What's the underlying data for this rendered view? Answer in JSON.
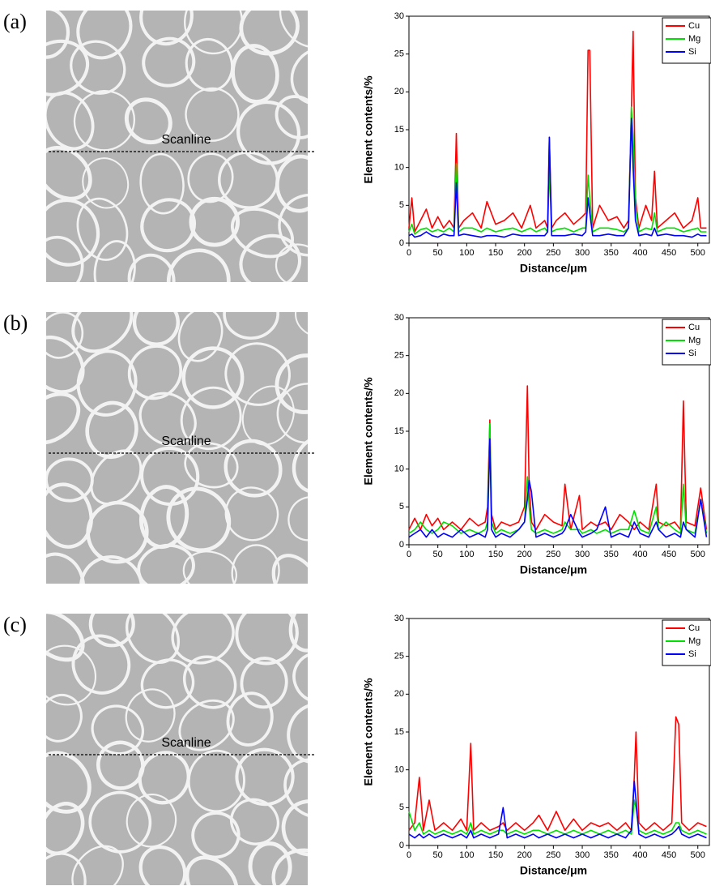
{
  "chart_data": [
    {
      "type": "line",
      "panel_label": "(a)",
      "image_annotation": "Scanline",
      "x_label": "Distance/μm",
      "y_label": "Element contents/%",
      "x": [
        0,
        5,
        10,
        20,
        30,
        40,
        50,
        60,
        70,
        78,
        82,
        86,
        95,
        110,
        125,
        135,
        150,
        165,
        180,
        195,
        210,
        220,
        235,
        240,
        243,
        247,
        255,
        270,
        285,
        300,
        306,
        310,
        313,
        318,
        330,
        345,
        360,
        372,
        380,
        385,
        388,
        392,
        398,
        410,
        420,
        425,
        430,
        445,
        460,
        475,
        490,
        500,
        505,
        515
      ],
      "series": [
        {
          "name": "Cu",
          "color": "#ff0000",
          "values": [
            2,
            6,
            1.5,
            3,
            4.5,
            2,
            3.5,
            2,
            3,
            2,
            14.5,
            2,
            3,
            4,
            2,
            5.5,
            2.5,
            3,
            4,
            2,
            5,
            2,
            3,
            2,
            14,
            2,
            3,
            4,
            2.5,
            3.5,
            4,
            25.5,
            25.5,
            2,
            5,
            3,
            3.5,
            2,
            3,
            17.5,
            28,
            6,
            2,
            5,
            3,
            9.5,
            2,
            3,
            4,
            2,
            3,
            6,
            2,
            2
          ]
        },
        {
          "name": "Mg",
          "color": "#00e000",
          "values": [
            1.5,
            2.5,
            1.2,
            1.8,
            2,
            1.5,
            1.8,
            1.5,
            2,
            1.5,
            10.5,
            1.5,
            2,
            2,
            1.5,
            2,
            1.5,
            1.8,
            2,
            1.5,
            2,
            1.5,
            2,
            1.5,
            10,
            1.5,
            1.8,
            2,
            1.5,
            2,
            2,
            9,
            6,
            1.5,
            2,
            2,
            1.8,
            1.5,
            2,
            18,
            14,
            5,
            1.5,
            2,
            1.8,
            4,
            1.5,
            2,
            2,
            1.5,
            1.8,
            2,
            1.5,
            1.5
          ]
        },
        {
          "name": "Si",
          "color": "#0000ff",
          "values": [
            1,
            1.2,
            0.8,
            1,
            1.5,
            1,
            0.8,
            1.2,
            1,
            1,
            8,
            1,
            1.2,
            1,
            0.8,
            1,
            1,
            0.8,
            1.2,
            1,
            1,
            1,
            1,
            1.5,
            14,
            1,
            1,
            1,
            1.2,
            1,
            1.5,
            6,
            4,
            1,
            1,
            1.2,
            1,
            1,
            2,
            16.5,
            10,
            3,
            1,
            1.2,
            1,
            2,
            1,
            1.2,
            1,
            1,
            0.8,
            1.2,
            1,
            1
          ]
        }
      ],
      "xlim": [
        0,
        520
      ],
      "ylim": [
        0,
        30
      ],
      "xticks": [
        0,
        50,
        100,
        150,
        200,
        250,
        300,
        350,
        400,
        450,
        500
      ],
      "yticks": [
        0,
        5,
        10,
        15,
        20,
        25,
        30
      ],
      "legend": "upper right"
    },
    {
      "type": "line",
      "panel_label": "(b)",
      "image_annotation": "Scanline",
      "x_label": "Distance/μm",
      "y_label": "Element contents/%",
      "x": [
        0,
        10,
        20,
        30,
        40,
        50,
        60,
        75,
        90,
        105,
        120,
        132,
        136,
        140,
        143,
        150,
        160,
        175,
        190,
        200,
        205,
        208,
        212,
        220,
        235,
        250,
        265,
        270,
        280,
        295,
        300,
        315,
        325,
        340,
        350,
        365,
        380,
        390,
        400,
        415,
        428,
        432,
        445,
        460,
        470,
        475,
        480,
        495,
        505,
        515
      ],
      "series": [
        {
          "name": "Cu",
          "color": "#ff0000",
          "values": [
            2,
            3.5,
            2,
            4,
            2.5,
            3.5,
            2,
            3,
            2,
            3.5,
            2.5,
            3,
            5,
            16.5,
            4,
            2,
            3,
            2.5,
            3,
            5,
            21,
            8,
            3,
            2,
            4,
            3,
            2.5,
            8,
            2,
            6.5,
            2,
            3,
            2.5,
            3,
            2,
            4,
            3,
            2,
            3,
            2,
            8,
            3,
            2.5,
            3,
            2,
            19,
            3,
            2.5,
            7.5,
            2
          ]
        },
        {
          "name": "Mg",
          "color": "#00e000",
          "values": [
            1.5,
            2,
            3,
            2,
            1.5,
            2,
            3,
            2.5,
            1.5,
            2,
            1.5,
            2,
            3,
            16,
            3,
            1.5,
            2,
            1.5,
            2,
            3,
            9,
            5,
            2,
            1.5,
            2,
            1.5,
            2,
            3,
            2,
            2,
            1.5,
            2,
            1.5,
            2,
            1.5,
            2,
            2,
            4.5,
            2,
            1.5,
            5,
            2,
            3,
            2,
            1.5,
            8,
            2,
            1.5,
            6,
            1.5
          ]
        },
        {
          "name": "Si",
          "color": "#0000ff",
          "values": [
            1,
            1.5,
            2,
            1,
            2,
            1,
            1.5,
            1,
            2,
            1,
            1.5,
            1,
            2,
            14,
            2,
            1,
            1.5,
            1,
            2,
            3,
            6,
            8.5,
            7,
            1,
            1.5,
            1,
            1.5,
            2,
            4,
            1.5,
            1,
            1.5,
            2,
            5,
            1,
            1.5,
            1,
            3,
            1.5,
            1,
            3,
            2,
            1,
            1.5,
            1,
            3,
            2,
            1,
            6,
            1
          ]
        }
      ],
      "xlim": [
        0,
        520
      ],
      "ylim": [
        0,
        30
      ],
      "xticks": [
        0,
        50,
        100,
        150,
        200,
        250,
        300,
        350,
        400,
        450,
        500
      ],
      "yticks": [
        0,
        5,
        10,
        15,
        20,
        25,
        30
      ],
      "legend": "upper right"
    },
    {
      "type": "line",
      "panel_label": "(c)",
      "image_annotation": "Scanline",
      "x_label": "Distance/μm",
      "y_label": "Element contents/%",
      "x": [
        0,
        10,
        18,
        25,
        35,
        45,
        60,
        75,
        90,
        100,
        107,
        112,
        125,
        140,
        155,
        163,
        170,
        185,
        200,
        215,
        225,
        240,
        255,
        270,
        285,
        300,
        315,
        330,
        345,
        360,
        375,
        385,
        390,
        393,
        398,
        410,
        425,
        440,
        455,
        462,
        467,
        472,
        485,
        500,
        515
      ],
      "series": [
        {
          "name": "Cu",
          "color": "#ff0000",
          "values": [
            2,
            3,
            9,
            2,
            6,
            2,
            3,
            2,
            3.5,
            2,
            13.5,
            2,
            3,
            2,
            2.5,
            3,
            2,
            3,
            2,
            3,
            4,
            2,
            4.5,
            2,
            3.5,
            2,
            3,
            2.5,
            3,
            2,
            3,
            2,
            9,
            15,
            3,
            2,
            3,
            2,
            3,
            17,
            16,
            3,
            2,
            3,
            2.5
          ]
        },
        {
          "name": "Mg",
          "color": "#00e000",
          "values": [
            4.5,
            2,
            3,
            1.5,
            2,
            1.5,
            2,
            1.5,
            2,
            1.5,
            3,
            1.5,
            2,
            1.5,
            2,
            2,
            1.5,
            2,
            1.5,
            2,
            2,
            1.5,
            2,
            1.5,
            2,
            1.5,
            2,
            1.5,
            2,
            1.5,
            2,
            1.5,
            6,
            5,
            2,
            1.5,
            2,
            1.5,
            2,
            3,
            3,
            2,
            1.5,
            2,
            1.5
          ]
        },
        {
          "name": "Si",
          "color": "#0000ff",
          "values": [
            1.5,
            1,
            1.5,
            1,
            1.5,
            1,
            1.5,
            1,
            1.5,
            1,
            2,
            1,
            1.5,
            1,
            1.5,
            5,
            1,
            1.5,
            1,
            1.5,
            1,
            1.5,
            1,
            1.5,
            1,
            1.5,
            1,
            1.5,
            1,
            1.5,
            1,
            2,
            8.5,
            6,
            1.5,
            1,
            1.5,
            1,
            1.5,
            2,
            2.5,
            1.5,
            1,
            1.5,
            1
          ]
        }
      ],
      "xlim": [
        0,
        520
      ],
      "ylim": [
        0,
        30
      ],
      "xticks": [
        0,
        50,
        100,
        150,
        200,
        250,
        300,
        350,
        400,
        450,
        500
      ],
      "yticks": [
        0,
        5,
        10,
        15,
        20,
        25,
        30
      ],
      "legend": "upper right"
    }
  ]
}
